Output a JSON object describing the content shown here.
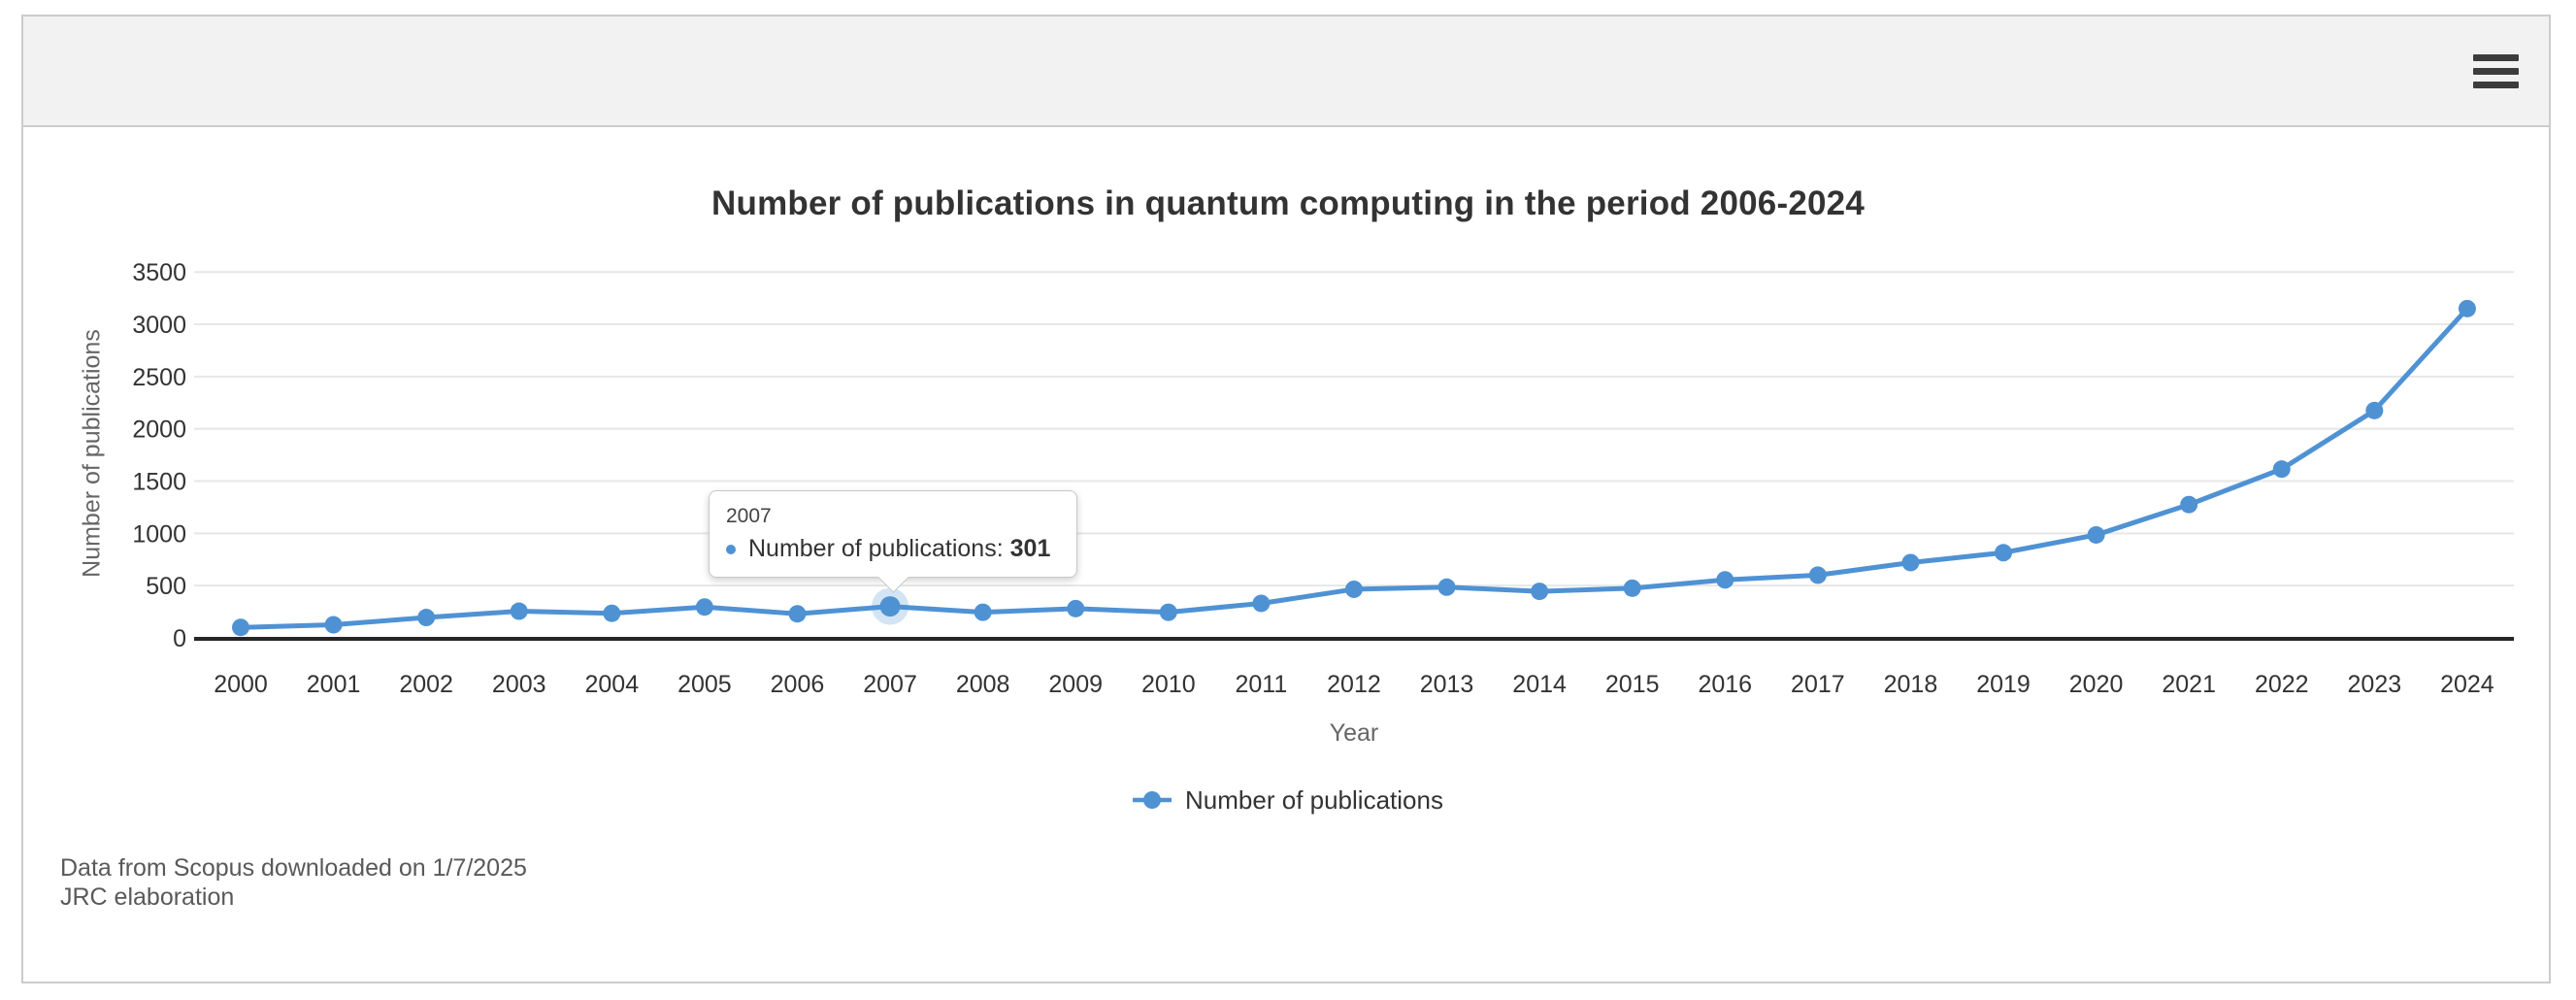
{
  "header": {
    "menu_icon": "hamburger-menu"
  },
  "chart": {
    "title": "Number of publications in quantum computing in the period 2006-2024",
    "xlabel": "Year",
    "ylabel": "Number of publications",
    "legend_label": "Number of publications"
  },
  "chart_data": {
    "type": "line",
    "title": "Number of publications in quantum computing in the period 2006-2024",
    "xlabel": "Year",
    "ylabel": "Number of publications",
    "legend_entries": [
      "Number of publications"
    ],
    "legend_position": "bottom",
    "grid": true,
    "categories": [
      2000,
      2001,
      2002,
      2003,
      2004,
      2005,
      2006,
      2007,
      2008,
      2009,
      2010,
      2011,
      2012,
      2013,
      2014,
      2015,
      2016,
      2017,
      2018,
      2019,
      2020,
      2021,
      2022,
      2023,
      2024
    ],
    "values": [
      100,
      125,
      195,
      255,
      235,
      295,
      230,
      301,
      245,
      280,
      245,
      330,
      465,
      485,
      445,
      475,
      555,
      600,
      720,
      815,
      985,
      1275,
      1615,
      2175,
      3150
    ],
    "ylim": [
      0,
      3500
    ],
    "ytick_step": 500
  },
  "tooltip": {
    "year": "2007",
    "label": "Number of publications:",
    "value": "301",
    "highlight_year": 2007
  },
  "footer": {
    "line1": "Data from Scopus downloaded on 1/7/2025",
    "line2": "JRC elaboration"
  },
  "colors": {
    "accent": "#4f92d4",
    "gridline": "#e7e7e7",
    "axis_line": "#262626",
    "tick_text": "#333333",
    "muted_text": "#666666",
    "footer_text": "#595959",
    "title_text": "#333333",
    "header_bg": "#f2f2f2",
    "border": "#cccccc",
    "menu_icon": "#3d3d3d",
    "tooltip_border": "#c8c8c8"
  }
}
